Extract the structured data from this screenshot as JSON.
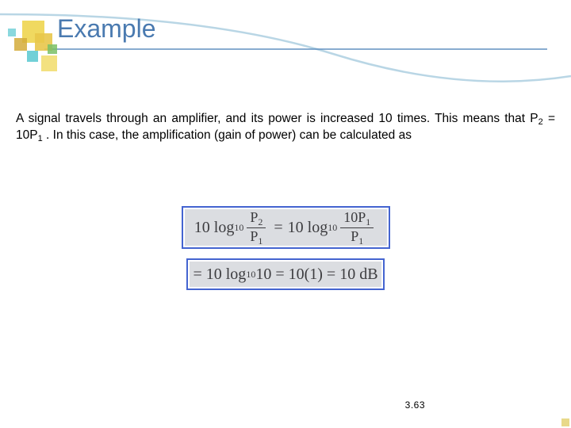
{
  "title": "Example",
  "paragraph_html": "A signal travels through an amplifier, and its power is increased 10 times. This means that P<sub>2</sub> = 10P<sub>1</sub> . In this case, the amplification (gain of power) can be calculated as",
  "equation1": {
    "lhs_coeff": "10 log",
    "lhs_base": "10",
    "frac1_num": "P",
    "frac1_num_sub": "2",
    "frac1_den": "P",
    "frac1_den_sub": "1",
    "rhs_coeff": "10 log",
    "rhs_base": "10",
    "frac2_num": "10P",
    "frac2_num_sub": "1",
    "frac2_den": "P",
    "frac2_den_sub": "1"
  },
  "equation2": {
    "text_a": "= 10 log",
    "base": "10",
    "text_b": " 10 = 10(1) = 10 dB"
  },
  "page_number": "3.63",
  "decor": {
    "yellow_main": "#f0d960",
    "yellow_mid": "#e8c74a",
    "yellow_dark": "#d4ac3a",
    "cyan": "#58c8d0",
    "green": "#7abf66",
    "line_color": "#6090c0",
    "curve_color": "#b9d6e5"
  }
}
